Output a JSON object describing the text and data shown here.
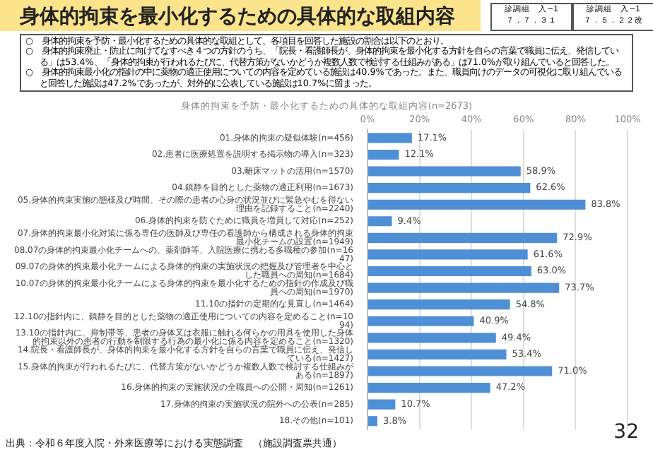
{
  "chart_data": {
    "type": "bar",
    "orientation": "horizontal",
    "title": "身体的拘束を最小化するための具体的な取組内容",
    "subtitle": "身体的拘束を予防・最小化するための具体的な取組内容(n=2673)",
    "categories": [
      "01.身体的拘束の疑似体験(n=456)",
      "02.患者に医療処置を説明する掲示物の導入(n=323)",
      "03.離床マットの活用(n=1570)",
      "04.鎮静を目的とした薬物の適正利用(n=1673)",
      "05.身体的拘束実施の態様及び時間、その際の患者の心身の状況並びに緊急やむを得ない理由を記録すること(n=2240)",
      "06.身体的拘束を防ぐために職員を増員して対応(n=252)",
      "07.身体的拘束最小化対策に係る専任の医師及び専任の看護師から構成される身体的拘束最小化チームの設置(n=1949)",
      "08.07の身体的拘束最小化チームへの、薬剤師等、入院医療に携わる多職種の参加(n=1647)",
      "09.07の身体的拘束最小化チームによる身体的拘束の実施状況の把握及び管理者を中心とした職員への周知(n=1684)",
      "10.07の身体的拘束最小化チームによる身体的拘束を最小化するための指針の作成及び職員への周知(n=1970)",
      "11.10の指針の定期的な見直し(n=1464)",
      "12.10の指針内に、鎮静を目的とした薬物の適正使用についての内容を定めること(n=1094)",
      "13.10の指針内に、抑制帯等、患者の身体又は衣服に触れる何らかの用具を使用した身体的拘束以外の患者の行動を制限する行為の最小化に係る内容を定めること(n=1320)",
      "14.院長・看護師長が、身体的拘束を最小化する方針を自らの言葉で職員に伝え、発信している(n=1427)",
      "15.身体的拘束が行われるたびに、代替方策がないかどうか複数人数で検討する仕組みがある(n=1897)",
      "16.身体的拘束の実施状況の全職員への公開・周知(n=1261)",
      "17.身体的拘束の実施状況の院外への公表(n=285)",
      "18.その他(n=101)"
    ],
    "values": [
      17.1,
      12.1,
      58.9,
      62.6,
      83.8,
      9.4,
      72.9,
      61.6,
      63.0,
      73.7,
      54.8,
      40.9,
      49.4,
      53.4,
      71.0,
      47.2,
      10.7,
      3.8
    ],
    "value_labels": [
      "17.1%",
      "12.1%",
      "58.9%",
      "62.6%",
      "83.8%",
      "9.4%",
      "72.9%",
      "61.6%",
      "63.0%",
      "73.7%",
      "54.8%",
      "40.9%",
      "49.4%",
      "53.4%",
      "71.0%",
      "47.2%",
      "10.7%",
      "3.8%"
    ],
    "color": "#4f8fd6",
    "xlim": [
      0,
      100
    ],
    "xticks": [
      {
        "value": 0,
        "label": "0%"
      },
      {
        "value": 20,
        "label": "20%"
      },
      {
        "value": 40,
        "label": "40%"
      },
      {
        "value": 60,
        "label": "60%"
      },
      {
        "value": 80,
        "label": "80%"
      },
      {
        "value": 100,
        "label": "100%"
      }
    ],
    "grid": "x",
    "legend": false,
    "annotations": [
      "診調組　入−1\n７．７．３１",
      "診調組　入−1\n７．５．２２改",
      "○　身体的拘束を予防・最小化するための具体的な取組として、各項目を回答した施設の割合は以下のとおり。",
      "○　身体的拘束廃止・防止に向けてなすべき４つの方針のうち、「院長・看護師長が、身体的拘束を最小化する方針を自らの言葉で職員に伝え、発信している」は53.4%、「身体的拘束が行われるたびに、代替方策がないかどうか複数人数で検討する仕組みがある」は71.0%が取り組んでいると回答した。",
      "○　身体的拘束最小化の指針の中に薬物の適正使用についての内容を定めている施設は40.9%であった。また、職員向けのデータの可視化に取り組んでいると回答した施設は47.2%であったが、対外的に公表している施設は10.7%に留まった。",
      "出典：令和６年度入院・外来医療等における実態調査　（施設調査票共通）",
      "32"
    ]
  }
}
